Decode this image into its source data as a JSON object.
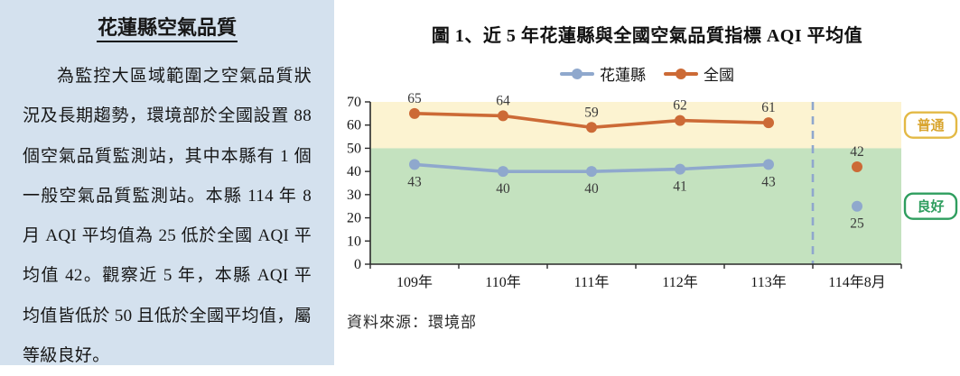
{
  "panel": {
    "title": "花蓮縣空氣品質",
    "body": "為監控大區域範圍之空氣品質狀況及長期趨勢，環境部於全國設置 88 個空氣品質監測站，其中本縣有 1 個一般空氣品質監測站。本縣 114 年 8 月 AQI 平均值為 25 低於全國 AQI 平均值 42。觀察近 5 年，本縣 AQI 平均值皆低於 50 且低於全國平均值，屬等級良好。",
    "bg_color": "#d4e1ee"
  },
  "chart_data": {
    "type": "line",
    "title": "圖 1、近 5 年花蓮縣與全國空氣品質指標 AQI 平均值",
    "source": "資料來源：環境部",
    "categories": [
      "109年",
      "110年",
      "111年",
      "112年",
      "113年",
      "114年8月"
    ],
    "series": [
      {
        "key": "hualien-county",
        "name": "花蓮縣",
        "color": "#8fa8cd",
        "values": [
          43,
          40,
          40,
          41,
          43,
          25
        ],
        "label_position": "below"
      },
      {
        "key": "nationwide",
        "name": "全國",
        "color": "#cc6a36",
        "values": [
          65,
          64,
          59,
          62,
          61,
          42
        ],
        "label_position": "above"
      }
    ],
    "connected_points": 5,
    "ylim": [
      0,
      70
    ],
    "yticks": [
      0,
      10,
      20,
      30,
      40,
      50,
      60,
      70
    ],
    "zones": [
      {
        "key": "moderate",
        "label": "普通",
        "from": 50,
        "to": 70,
        "bg": "#fcf3d1",
        "text_color": "#d9a52f",
        "border_color": "#e3b945"
      },
      {
        "key": "good",
        "label": "良好",
        "from": 0,
        "to": 50,
        "bg": "#c4e2bf",
        "text_color": "#2f9e5f",
        "border_color": "#2f9e5f"
      }
    ],
    "separator": {
      "after_category_index": 4,
      "color": "#8fa7cd"
    },
    "legend_position": "top",
    "grid": false,
    "axis_color": "#2a2a2a",
    "data_label_color": "#3a3a3a"
  }
}
